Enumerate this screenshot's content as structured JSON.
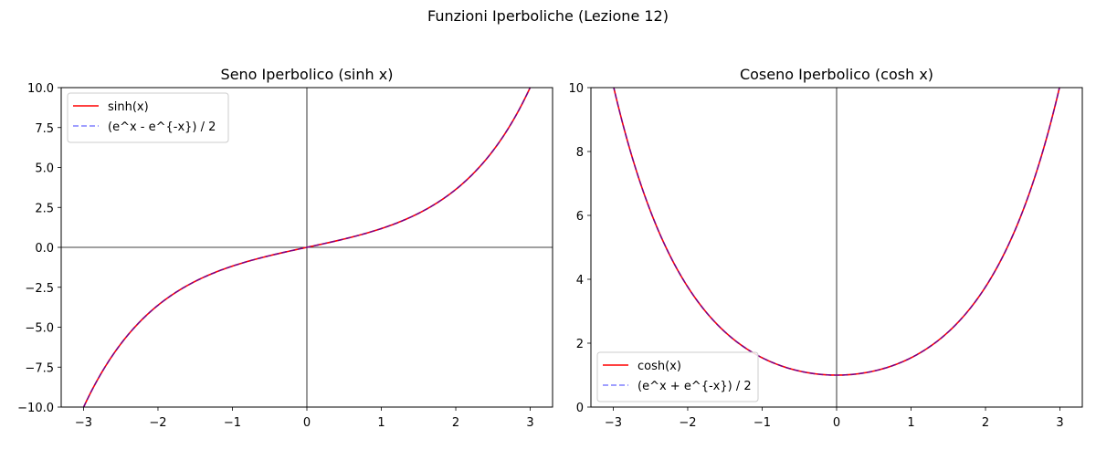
{
  "figure": {
    "suptitle": "Funzioni Iperboliche (Lezione 12)"
  },
  "chart_data": [
    {
      "type": "line",
      "title": "Seno Iperbolico (sinh x)",
      "xlabel": "",
      "ylabel": "",
      "xlim": [
        -3.3,
        3.3
      ],
      "ylim": [
        -10,
        10
      ],
      "xticks": [
        -3,
        -2,
        -1,
        0,
        1,
        2,
        3
      ],
      "xtick_labels": [
        "−3",
        "−2",
        "−1",
        "0",
        "1",
        "2",
        "3"
      ],
      "yticks": [
        -10,
        -7.5,
        -5,
        -2.5,
        0,
        2.5,
        5,
        7.5,
        10
      ],
      "ytick_labels": [
        "−10.0",
        "−7.5",
        "−5.0",
        "−2.5",
        "0.0",
        "2.5",
        "5.0",
        "7.5",
        "10.0"
      ],
      "grid": false,
      "reference_lines": {
        "x0": true,
        "y0": true
      },
      "legend_position": "upper-left",
      "x_domain": [
        -3,
        3
      ],
      "series": [
        {
          "name": "sinh(x)",
          "function": "sinh",
          "color": "#ff0000",
          "style": "solid",
          "x": [
            -3,
            -2.5,
            -2,
            -1.5,
            -1,
            -0.5,
            0,
            0.5,
            1,
            1.5,
            2,
            2.5,
            3
          ],
          "y": [
            -10.018,
            -6.05,
            -3.627,
            -2.129,
            -1.175,
            -0.521,
            0,
            0.521,
            1.175,
            2.129,
            3.627,
            6.05,
            10.018
          ]
        },
        {
          "name": "(e^x - e^{-x}) / 2",
          "function": "sinh",
          "color": "#0000ff",
          "style": "dashed",
          "alpha": 0.5,
          "x": [
            -3,
            -2.5,
            -2,
            -1.5,
            -1,
            -0.5,
            0,
            0.5,
            1,
            1.5,
            2,
            2.5,
            3
          ],
          "y": [
            -10.018,
            -6.05,
            -3.627,
            -2.129,
            -1.175,
            -0.521,
            0,
            0.521,
            1.175,
            2.129,
            3.627,
            6.05,
            10.018
          ]
        }
      ]
    },
    {
      "type": "line",
      "title": "Coseno Iperbolico (cosh x)",
      "xlabel": "",
      "ylabel": "",
      "xlim": [
        -3.3,
        3.3
      ],
      "ylim": [
        0,
        10
      ],
      "xticks": [
        -3,
        -2,
        -1,
        0,
        1,
        2,
        3
      ],
      "xtick_labels": [
        "−3",
        "−2",
        "−1",
        "0",
        "1",
        "2",
        "3"
      ],
      "yticks": [
        0,
        2,
        4,
        6,
        8,
        10
      ],
      "ytick_labels": [
        "0",
        "2",
        "4",
        "6",
        "8",
        "10"
      ],
      "grid": false,
      "reference_lines": {
        "x0": true,
        "y0": false
      },
      "legend_position": "lower-left",
      "x_domain": [
        -3,
        3
      ],
      "series": [
        {
          "name": "cosh(x)",
          "function": "cosh",
          "color": "#ff0000",
          "style": "solid",
          "x": [
            -3,
            -2.5,
            -2,
            -1.5,
            -1,
            -0.5,
            0,
            0.5,
            1,
            1.5,
            2,
            2.5,
            3
          ],
          "y": [
            10.068,
            6.132,
            3.762,
            2.352,
            1.543,
            1.128,
            1,
            1.128,
            1.543,
            2.352,
            3.762,
            6.132,
            10.068
          ]
        },
        {
          "name": "(e^x + e^{-x}) / 2",
          "function": "cosh",
          "color": "#0000ff",
          "style": "dashed",
          "alpha": 0.5,
          "x": [
            -3,
            -2.5,
            -2,
            -1.5,
            -1,
            -0.5,
            0,
            0.5,
            1,
            1.5,
            2,
            2.5,
            3
          ],
          "y": [
            10.068,
            6.132,
            3.762,
            2.352,
            1.543,
            1.128,
            1,
            1.128,
            1.543,
            2.352,
            3.762,
            6.132,
            10.068
          ]
        }
      ]
    }
  ]
}
